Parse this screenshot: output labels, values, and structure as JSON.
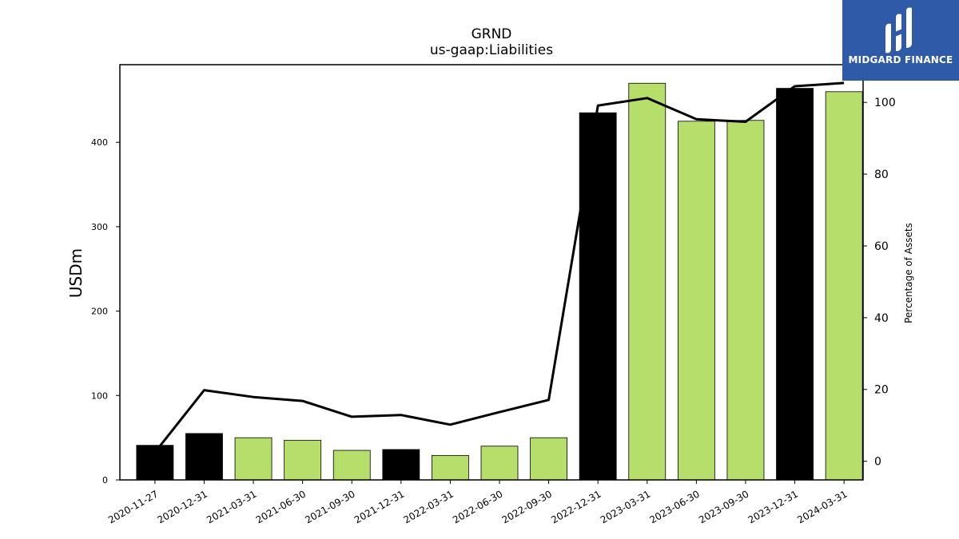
{
  "chart_data": {
    "type": "bar",
    "title": "GRND",
    "subtitle": "us-gaap:Liabilities",
    "ylabel": "USDm",
    "y2label": "Percentage of Assets",
    "categories": [
      "2020-11-27",
      "2020-12-31",
      "2021-03-31",
      "2021-06-30",
      "2021-09-30",
      "2021-12-31",
      "2022-03-31",
      "2022-06-30",
      "2022-09-30",
      "2022-12-31",
      "2023-03-31",
      "2023-06-30",
      "2023-09-30",
      "2023-12-31",
      "2024-03-31"
    ],
    "series": [
      {
        "type": "bar",
        "values": [
          41,
          55,
          50,
          47,
          35,
          36,
          29,
          40,
          50,
          435,
          470,
          425,
          426,
          464,
          460
        ],
        "colors": [
          "#000000",
          "#000000",
          "#b5de6a",
          "#b5de6a",
          "#b5de6a",
          "#000000",
          "#b5de6a",
          "#b5de6a",
          "#b5de6a",
          "#000000",
          "#b5de6a",
          "#b5de6a",
          "#b5de6a",
          "#000000",
          "#b5de6a"
        ]
      },
      {
        "type": "line",
        "axis": "right",
        "color": "#000000",
        "values": [
          2.5,
          19.8,
          17.9,
          16.8,
          12.4,
          12.9,
          10.2,
          13.7,
          17.1,
          99.1,
          101.2,
          95.3,
          94.6,
          104.5,
          105.4
        ]
      }
    ],
    "ylim": [
      0,
      492
    ],
    "yticks": [
      0,
      100,
      200,
      300,
      400
    ],
    "y2lim": [
      -5.2,
      110.5
    ],
    "y2ticks": [
      0,
      20,
      40,
      60,
      80,
      100
    ]
  },
  "logo": {
    "text": "MIDGARD FINANCE",
    "bg": "#2f5aa8"
  }
}
